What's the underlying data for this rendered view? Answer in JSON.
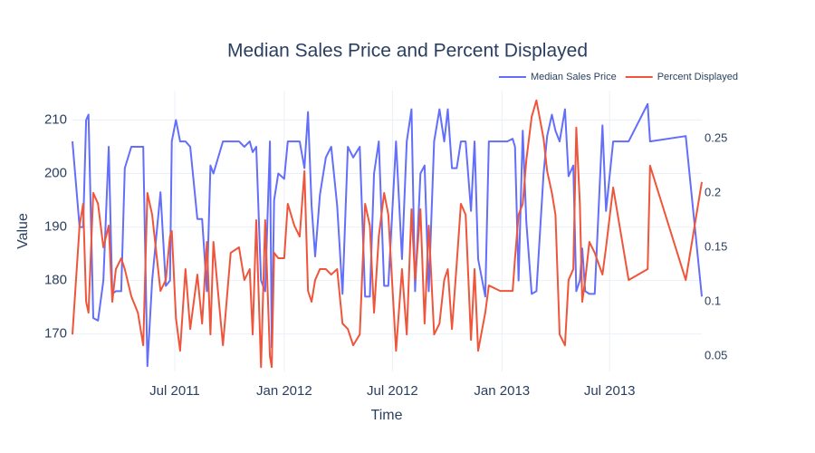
{
  "chart_data": {
    "type": "line",
    "title": "Median Sales Price and Percent Displayed",
    "x_label": "Time",
    "y_label": "Value",
    "x": [
      "2011-01-10",
      "2011-01-22",
      "2011-01-28",
      "2011-02-02",
      "2011-02-06",
      "2011-02-14",
      "2011-02-22",
      "2011-03-03",
      "2011-03-12",
      "2011-03-18",
      "2011-03-24",
      "2011-04-02",
      "2011-04-08",
      "2011-04-19",
      "2011-04-30",
      "2011-05-09",
      "2011-05-16",
      "2011-05-24",
      "2011-06-07",
      "2011-06-16",
      "2011-06-23",
      "2011-06-26",
      "2011-07-03",
      "2011-07-10",
      "2011-07-19",
      "2011-07-27",
      "2011-08-08",
      "2011-08-16",
      "2011-08-24",
      "2011-08-30",
      "2011-09-04",
      "2011-09-20",
      "2011-10-03",
      "2011-10-17",
      "2011-10-26",
      "2011-11-04",
      "2011-11-09",
      "2011-11-15",
      "2011-11-23",
      "2011-11-30",
      "2011-12-08",
      "2011-12-11",
      "2011-12-15",
      "2011-12-22",
      "2012-01-01",
      "2012-01-07",
      "2012-01-18",
      "2012-01-27",
      "2012-02-04",
      "2012-02-10",
      "2012-02-16",
      "2012-02-22",
      "2012-03-01",
      "2012-03-11",
      "2012-03-20",
      "2012-03-30",
      "2012-04-08",
      "2012-04-17",
      "2012-04-26",
      "2012-05-07",
      "2012-05-16",
      "2012-05-24",
      "2012-05-31",
      "2012-06-08",
      "2012-06-17",
      "2012-06-24",
      "2012-07-07",
      "2012-07-17",
      "2012-07-25",
      "2012-08-02",
      "2012-08-08",
      "2012-08-17",
      "2012-08-24",
      "2012-08-31",
      "2012-09-09",
      "2012-09-18",
      "2012-09-26",
      "2012-10-02",
      "2012-10-09",
      "2012-10-17",
      "2012-10-24",
      "2012-11-01",
      "2012-11-10",
      "2012-11-16",
      "2012-11-22",
      "2012-12-04",
      "2012-12-10",
      "2012-12-29",
      "2013-01-10",
      "2013-01-19",
      "2013-01-23",
      "2013-01-29",
      "2013-02-05",
      "2013-02-11",
      "2013-02-20",
      "2013-02-28",
      "2013-03-12",
      "2013-03-18",
      "2013-03-26",
      "2013-04-01",
      "2013-04-08",
      "2013-04-17",
      "2013-04-23",
      "2013-05-01",
      "2013-05-06",
      "2013-05-12",
      "2013-05-16",
      "2013-05-21",
      "2013-05-28",
      "2013-06-06",
      "2013-06-19",
      "2013-06-25",
      "2013-07-07",
      "2013-08-02",
      "2013-09-03",
      "2013-09-07",
      "2013-11-06",
      "2013-12-03"
    ],
    "series": [
      {
        "name": "Median Sales Price",
        "color": "#636efa",
        "axis": "y",
        "values": [
          206,
          190,
          190,
          210,
          211,
          173,
          172.5,
          180,
          205,
          177.5,
          178,
          178,
          201,
          205,
          205,
          205,
          164,
          180,
          196.5,
          179,
          180,
          206,
          210,
          206,
          206,
          205,
          191.5,
          191.5,
          178,
          201.5,
          200,
          206,
          206,
          206,
          205,
          206,
          204,
          205,
          180,
          178,
          206,
          167.5,
          195,
          200,
          199,
          206,
          206,
          206,
          201,
          211.5,
          194,
          184.5,
          196,
          203,
          205,
          194,
          177.5,
          205,
          203,
          205,
          177,
          177,
          200,
          206,
          179,
          179,
          206,
          184,
          206,
          212,
          178,
          200,
          201.5,
          178,
          206,
          212,
          206,
          212,
          201,
          201,
          206,
          206,
          193,
          206,
          184,
          177,
          206,
          206,
          206,
          206.5,
          205,
          180,
          208,
          191,
          177.5,
          178,
          200,
          207,
          211,
          208,
          206,
          212,
          199.5,
          201.5,
          178,
          180,
          186,
          178,
          177.5,
          177.5,
          209,
          193,
          206,
          206,
          213,
          206,
          207,
          177
        ]
      },
      {
        "name": "Percent Displayed",
        "color": "#EF553B",
        "axis": "y2",
        "values": [
          0.07,
          0.17,
          0.19,
          0.1,
          0.09,
          0.2,
          0.19,
          0.15,
          0.17,
          0.1,
          0.13,
          0.14,
          0.13,
          0.105,
          0.09,
          0.06,
          0.2,
          0.18,
          0.11,
          0.12,
          0.16,
          0.165,
          0.085,
          0.055,
          0.13,
          0.075,
          0.125,
          0.08,
          0.155,
          0.07,
          0.155,
          0.06,
          0.145,
          0.15,
          0.12,
          0.13,
          0.07,
          0.175,
          0.04,
          0.175,
          0.05,
          0.04,
          0.145,
          0.14,
          0.14,
          0.19,
          0.17,
          0.16,
          0.22,
          0.11,
          0.1,
          0.12,
          0.13,
          0.13,
          0.125,
          0.13,
          0.08,
          0.075,
          0.06,
          0.07,
          0.19,
          0.17,
          0.09,
          0.16,
          0.2,
          0.18,
          0.055,
          0.13,
          0.07,
          0.185,
          0.12,
          0.185,
          0.08,
          0.17,
          0.07,
          0.08,
          0.12,
          0.13,
          0.075,
          0.135,
          0.19,
          0.18,
          0.065,
          0.13,
          0.055,
          0.09,
          0.115,
          0.11,
          0.11,
          0.11,
          0.14,
          0.18,
          0.19,
          0.23,
          0.27,
          0.285,
          0.25,
          0.22,
          0.2,
          0.18,
          0.07,
          0.06,
          0.12,
          0.13,
          0.26,
          0.19,
          0.1,
          0.12,
          0.155,
          0.145,
          0.125,
          0.15,
          0.205,
          0.12,
          0.13,
          0.225,
          0.12,
          0.21
        ]
      }
    ],
    "xlim": [
      "2011-01-10",
      "2013-12-03"
    ],
    "xticks": [
      {
        "value": "2011-07-01",
        "label": "Jul 2011"
      },
      {
        "value": "2012-01-01",
        "label": "Jan 2012"
      },
      {
        "value": "2012-07-01",
        "label": "Jul 2012"
      },
      {
        "value": "2013-01-01",
        "label": "Jan 2013"
      },
      {
        "value": "2013-07-01",
        "label": "Jul 2013"
      }
    ],
    "ylim": [
      163,
      215.5
    ],
    "yticks": [
      170,
      180,
      190,
      200,
      210
    ],
    "y2lim": [
      0.036,
      0.294
    ],
    "y2ticks": [
      0.05,
      0.1,
      0.15,
      0.2,
      0.25
    ],
    "grid": true,
    "legend_position": "top-right"
  }
}
